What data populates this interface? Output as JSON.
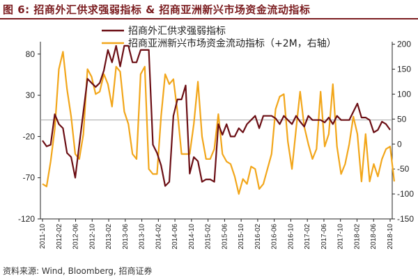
{
  "figure": {
    "title": "图 6:  招商外汇供求强弱指标 & 招商亚洲新兴市场资金流动指标",
    "source": "资料来源: Wind, Bloomberg, 招商证券"
  },
  "colors": {
    "series1": "#6b0e14",
    "series2": "#f2a61a",
    "title": "#7b1c1f",
    "zeroline": "#9a9a9a"
  },
  "chart_data": {
    "type": "line",
    "x_tick_labels": [
      "2011-10",
      "2012-02",
      "2012-06",
      "2012-10",
      "2013-02",
      "2013-06",
      "2013-10",
      "2014-02",
      "2014-06",
      "2014-10",
      "2015-02",
      "2015-06",
      "2015-10",
      "2016-02",
      "2016-06",
      "2016-10",
      "2017-02",
      "2017-06",
      "2017-10",
      "2018-02",
      "2018-06",
      "2018-10"
    ],
    "y_left": {
      "ticks": [
        80,
        30,
        -20,
        -70,
        -120
      ],
      "range": [
        -120,
        95
      ]
    },
    "y_right": {
      "ticks": [
        200,
        150,
        100,
        50,
        0,
        -50,
        -100,
        -150
      ],
      "range": [
        -150,
        205
      ]
    },
    "legend_position": "top",
    "series": [
      {
        "name": "招商外汇供求强弱指标",
        "axis": "left",
        "values": [
          -25,
          -32,
          -30,
          7,
          -5,
          -10,
          -40,
          -45,
          -70,
          -30,
          10,
          50,
          45,
          40,
          45,
          60,
          85,
          70,
          90,
          65,
          90,
          90,
          70,
          70,
          85,
          85,
          85,
          -30,
          -40,
          -55,
          -80,
          -75,
          5,
          25,
          25,
          42,
          -65,
          -45,
          -50,
          -75,
          -72,
          -72,
          -75,
          -5,
          -18,
          -5,
          -20,
          -20,
          -10,
          -15,
          -5,
          0,
          5,
          -10,
          5,
          5,
          5,
          2,
          -5,
          5,
          0,
          -5,
          5,
          -2,
          -8,
          5,
          0,
          0,
          0,
          -3,
          3,
          -5,
          5,
          0,
          0,
          0,
          10,
          20,
          3,
          3,
          0,
          -15,
          -12,
          -2,
          -5,
          -12
        ]
      },
      {
        "name": "招商亚洲新兴市场资金流动指标（+2M，右轴）",
        "axis": "right",
        "values": [
          -80,
          -85,
          -35,
          30,
          150,
          185,
          110,
          55,
          -20,
          -30,
          20,
          150,
          135,
          100,
          105,
          140,
          120,
          75,
          155,
          145,
          65,
          40,
          -20,
          -30,
          140,
          155,
          -50,
          -60,
          -60,
          55,
          140,
          120,
          130,
          65,
          -20,
          -20,
          -20,
          40,
          125,
          15,
          -30,
          -30,
          -10,
          60,
          -20,
          -35,
          -40,
          -65,
          -100,
          -70,
          -80,
          -45,
          -50,
          -90,
          -80,
          -50,
          -20,
          70,
          95,
          100,
          5,
          -50,
          30,
          105,
          35,
          0,
          -30,
          -10,
          105,
          -5,
          20,
          120,
          -5,
          -60,
          -40,
          0,
          55,
          20,
          -75,
          20,
          -75,
          -40,
          -65,
          -30,
          -10,
          -5,
          -75
        ]
      }
    ]
  }
}
